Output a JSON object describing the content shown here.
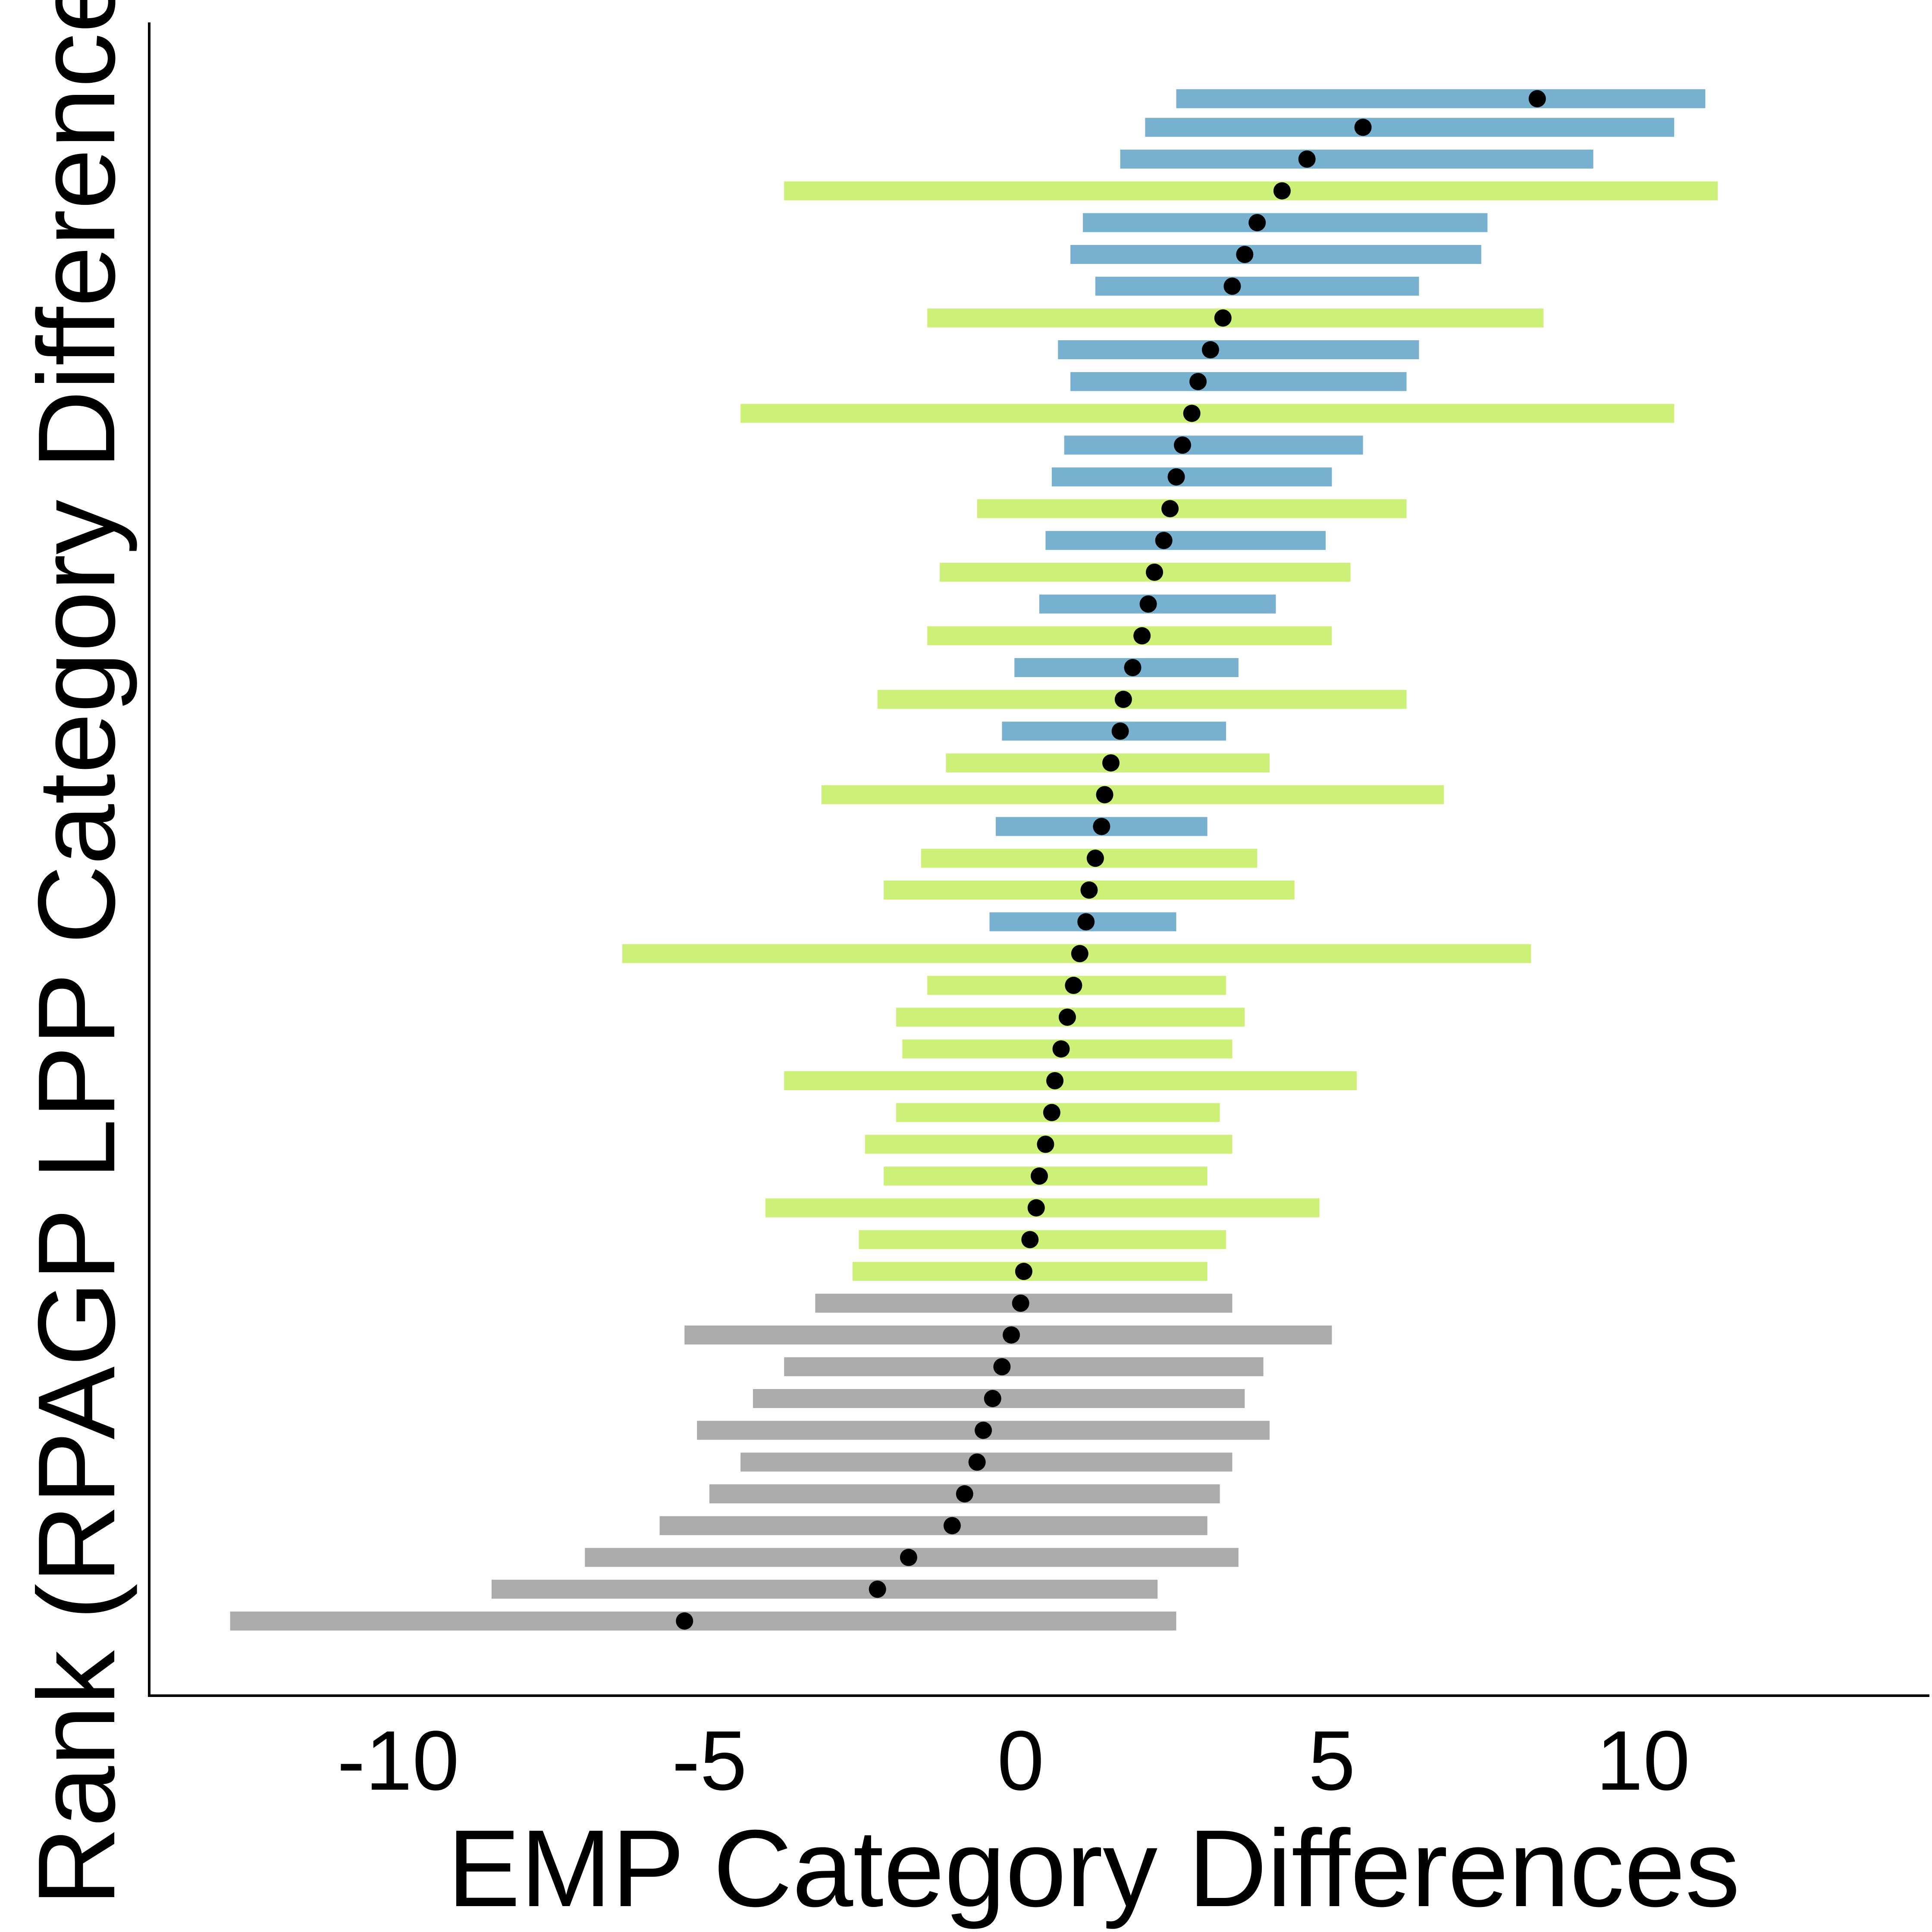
{
  "chart_data": {
    "type": "errorbar-scatter",
    "x_label": "EMP Category Differences",
    "y_label": "Rank (RPAGP LPP Category Differences)",
    "xlim": [
      -14,
      14.6
    ],
    "xticks": [
      -10,
      -5,
      0,
      5,
      10
    ],
    "ylim": [
      -22.5,
      504
    ],
    "point_color": "#000000",
    "series": [
      {
        "color": "#666666",
        "y": [
          1,
          11,
          21,
          31,
          41,
          51,
          61,
          71,
          81,
          91,
          101
        ],
        "x": [
          -5.4,
          -2.3,
          -1.8,
          -1.1,
          -0.9,
          -0.7,
          -0.6,
          -0.45,
          -0.3,
          -0.15,
          0.0
        ],
        "lower": [
          -12.7,
          -8.5,
          -7.0,
          -5.8,
          -5.0,
          -4.5,
          -5.2,
          -4.3,
          -3.8,
          -5.4,
          -3.3
        ],
        "upper": [
          2.5,
          2.2,
          3.5,
          3.0,
          3.2,
          3.4,
          4.0,
          3.6,
          3.9,
          5.0,
          3.4
        ]
      },
      {
        "color": "#a4e60a",
        "y": [
          111,
          121,
          131,
          141,
          151,
          161,
          171,
          181,
          191,
          201,
          211,
          231,
          241,
          261,
          271,
          291,
          311,
          331,
          351,
          381,
          411,
          451
        ],
        "x": [
          0.05,
          0.15,
          0.25,
          0.3,
          0.4,
          0.5,
          0.55,
          0.65,
          0.75,
          0.85,
          0.95,
          1.1,
          1.2,
          1.35,
          1.45,
          1.65,
          1.95,
          2.15,
          2.4,
          2.75,
          3.25,
          4.2
        ],
        "lower": [
          -2.7,
          -2.6,
          -4.1,
          -2.2,
          -2.5,
          -2.0,
          -3.8,
          -1.9,
          -2.0,
          -1.5,
          -6.4,
          -2.2,
          -1.6,
          -3.2,
          -1.2,
          -2.3,
          -1.5,
          -1.3,
          -0.7,
          -4.5,
          -1.5,
          -3.8
        ],
        "upper": [
          3.0,
          3.3,
          4.8,
          3.0,
          3.4,
          3.2,
          5.4,
          3.4,
          3.6,
          3.3,
          8.2,
          4.4,
          3.8,
          6.8,
          4.0,
          6.2,
          5.0,
          5.3,
          6.2,
          10.5,
          8.4,
          11.2
        ]
      },
      {
        "color": "#0a6fa8",
        "y": [
          221,
          251,
          281,
          301,
          321,
          341,
          361,
          371,
          391,
          401,
          421,
          431,
          441,
          461,
          471,
          480
        ],
        "x": [
          1.05,
          1.3,
          1.6,
          1.8,
          2.05,
          2.3,
          2.5,
          2.6,
          2.85,
          3.05,
          3.4,
          3.6,
          3.8,
          4.6,
          5.5,
          8.3
        ],
        "lower": [
          -0.5,
          -0.4,
          -0.3,
          -0.1,
          0.3,
          0.4,
          0.5,
          0.7,
          0.8,
          0.6,
          1.2,
          0.8,
          1.0,
          1.6,
          2.0,
          2.5
        ],
        "upper": [
          2.5,
          3.0,
          3.3,
          3.5,
          4.1,
          4.9,
          5.0,
          5.5,
          6.2,
          6.4,
          6.4,
          7.4,
          7.5,
          9.2,
          10.5,
          11.0
        ]
      }
    ]
  }
}
